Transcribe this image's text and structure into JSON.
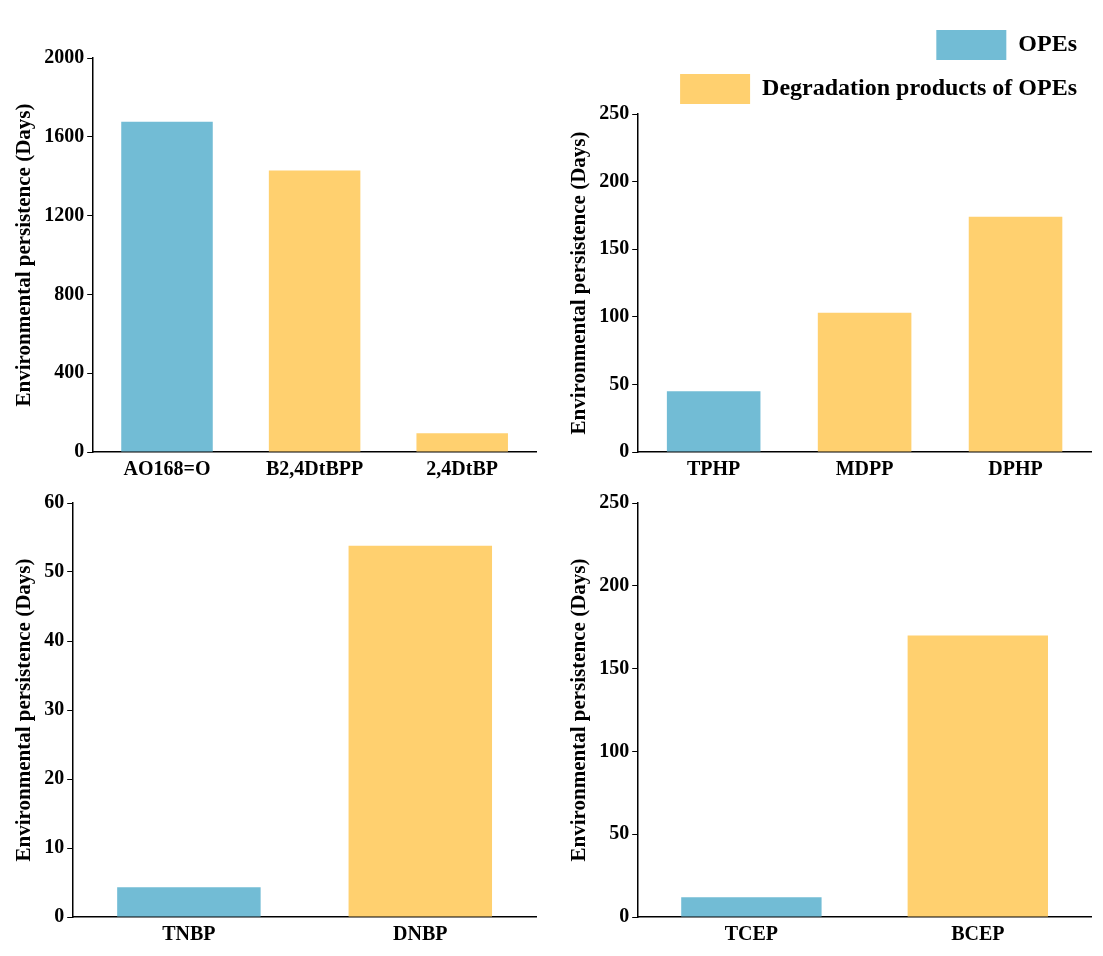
{
  "chart_data": [
    {
      "type": "bar",
      "stacked": true,
      "ylabel": "Environmental persistence (Days)",
      "categories": [
        "AO168=O",
        "B2,4DtBPP",
        "2,4DtBP"
      ],
      "ylim": [
        0,
        2000
      ],
      "yticks": [
        0,
        400,
        800,
        1200,
        1600,
        2000
      ],
      "grid": false,
      "legend": false,
      "series": [
        {
          "color": "#72bcd5",
          "values": [
            1677,
            null,
            null
          ]
        },
        {
          "color": "#ffd06f",
          "values": [
            null,
            1429,
            95
          ]
        }
      ]
    },
    {
      "type": "bar",
      "stacked": true,
      "ylabel": "Environmental persistence (Days)",
      "categories": [
        "TPHP",
        "MDPP",
        "DPHP"
      ],
      "ylim": [
        0,
        250
      ],
      "yticks": [
        0,
        50,
        100,
        150,
        200,
        250
      ],
      "grid": false,
      "legend": "top right",
      "series": [
        {
          "name": "OPEs",
          "color": "#72bcd5",
          "values": [
            45,
            null,
            null
          ]
        },
        {
          "name": "Degradation products of OPEs",
          "color": "#ffd06f",
          "values": [
            null,
            103,
            174
          ]
        }
      ]
    },
    {
      "type": "bar",
      "stacked": true,
      "ylabel": "Environmental persistence (Days)",
      "categories": [
        "TNBP",
        "DNBP"
      ],
      "ylim": [
        0,
        60
      ],
      "yticks": [
        0,
        10,
        20,
        30,
        40,
        50,
        60
      ],
      "grid": false,
      "legend": false,
      "series": [
        {
          "color": "#72bcd5",
          "values": [
            4.3,
            null
          ]
        },
        {
          "color": "#ffd06f",
          "values": [
            null,
            53.8
          ]
        }
      ]
    },
    {
      "type": "bar",
      "stacked": true,
      "ylabel": "Environmental persistence (Days)",
      "categories": [
        "TCEP",
        "BCEP"
      ],
      "ylim": [
        0,
        250
      ],
      "yticks": [
        0,
        50,
        100,
        150,
        200,
        250
      ],
      "grid": false,
      "legend": false,
      "series": [
        {
          "color": "#72bcd5",
          "values": [
            12,
            null
          ]
        },
        {
          "color": "#ffd06f",
          "values": [
            null,
            170
          ]
        }
      ]
    }
  ]
}
